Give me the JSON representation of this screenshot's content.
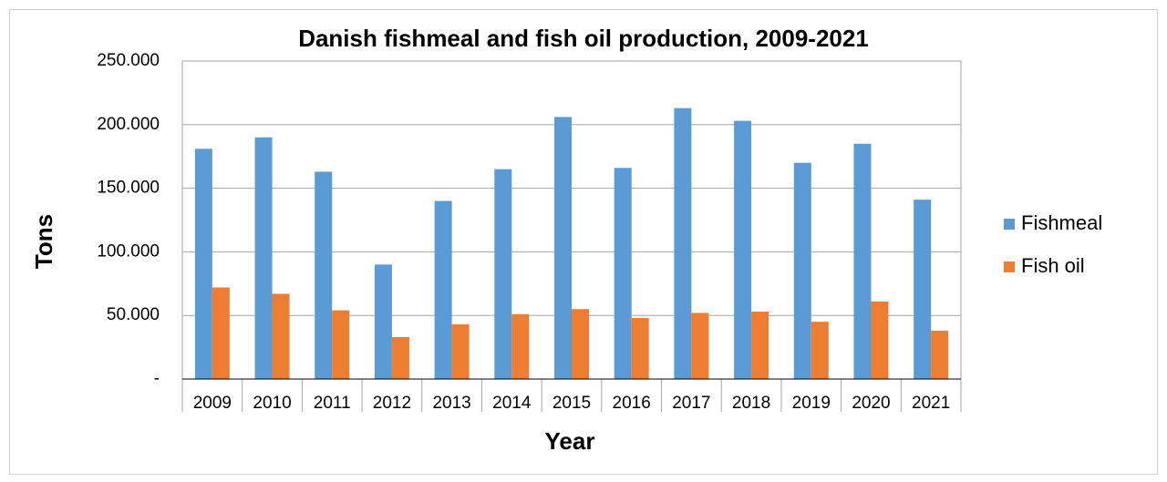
{
  "chart_data": {
    "type": "bar",
    "title": "Danish fishmeal and fish oil production, 2009-2021",
    "x_label": "Year",
    "y_label": "Tons",
    "categories": [
      "2009",
      "2010",
      "2011",
      "2012",
      "2013",
      "2014",
      "2015",
      "2016",
      "2017",
      "2018",
      "2019",
      "2020",
      "2021"
    ],
    "series": [
      {
        "name": "Fishmeal",
        "color": "#5b9bd5",
        "values": [
          181000,
          190000,
          163000,
          90000,
          140000,
          165000,
          206000,
          166000,
          213000,
          203000,
          170000,
          185000,
          141000
        ]
      },
      {
        "name": "Fish oil",
        "color": "#ed7d31",
        "values": [
          72000,
          67000,
          54000,
          33000,
          43000,
          51000,
          55000,
          48000,
          52000,
          53000,
          45000,
          61000,
          38000
        ]
      }
    ],
    "ylim": [
      0,
      250000
    ],
    "yticks": [
      {
        "value": 0,
        "label": "-"
      },
      {
        "value": 50000,
        "label": "50.000"
      },
      {
        "value": 100000,
        "label": "100.000"
      },
      {
        "value": 150000,
        "label": "150.000"
      },
      {
        "value": 200000,
        "label": "200.000"
      },
      {
        "value": 250000,
        "label": "250.000"
      }
    ],
    "grid": true,
    "legend": "right"
  }
}
